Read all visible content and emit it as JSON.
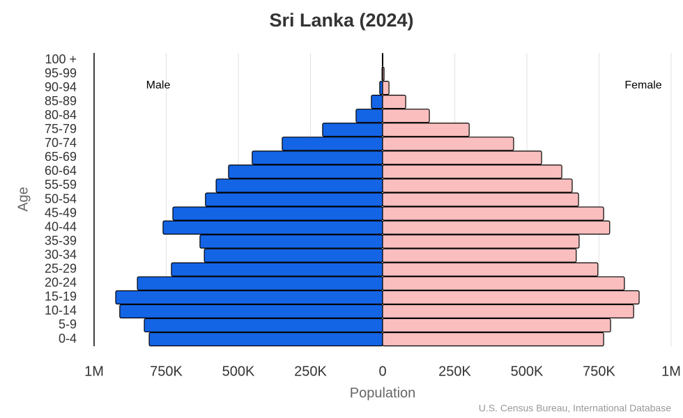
{
  "chart_data": {
    "type": "pyramid",
    "title": "Sri Lanka (2024)",
    "x_label": "Population",
    "y_label": "Age",
    "source": "U.S. Census Bureau, International Database",
    "categories": [
      "0-4",
      "5-9",
      "10-14",
      "15-19",
      "20-24",
      "25-29",
      "30-34",
      "35-39",
      "40-44",
      "45-49",
      "50-54",
      "55-59",
      "60-64",
      "65-69",
      "70-74",
      "75-79",
      "80-84",
      "85-89",
      "90-94",
      "95-99",
      "100 +"
    ],
    "series": [
      {
        "name": "Male",
        "color": "#1464e6",
        "side": "left",
        "values": [
          809000,
          826000,
          911000,
          925000,
          850000,
          732000,
          618000,
          633000,
          761000,
          727000,
          614000,
          577000,
          534000,
          452000,
          348000,
          208000,
          92000,
          39000,
          10000,
          2000,
          1000
        ]
      },
      {
        "name": "Female",
        "color": "#fbbebe",
        "side": "right",
        "values": [
          766000,
          790000,
          870000,
          889000,
          838000,
          746000,
          671000,
          681000,
          787000,
          766000,
          679000,
          657000,
          621000,
          551000,
          454000,
          300000,
          162000,
          80000,
          22000,
          5000,
          1000
        ]
      }
    ],
    "xlim": [
      -1000000,
      1000000
    ],
    "xticks": [
      {
        "value": -1000000,
        "label": "1M"
      },
      {
        "value": -750000,
        "label": "750K"
      },
      {
        "value": -500000,
        "label": "500K"
      },
      {
        "value": -250000,
        "label": "250K"
      },
      0,
      {
        "value": 250000,
        "label": "250K"
      },
      {
        "value": 500000,
        "label": "500K"
      },
      {
        "value": 750000,
        "label": "750K"
      },
      {
        "value": 1000000,
        "label": "1M"
      }
    ],
    "grid": true
  }
}
